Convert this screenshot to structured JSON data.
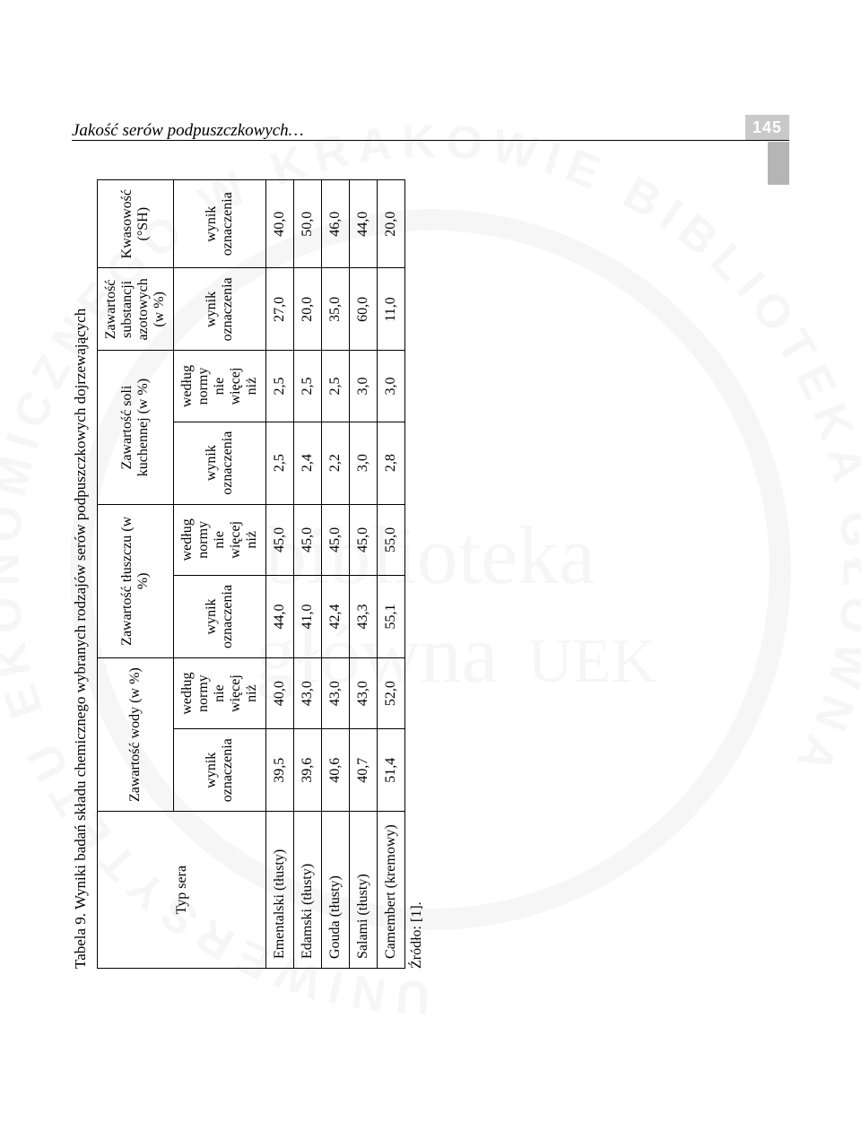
{
  "header": {
    "title": "Jakość serów podpuszczkowych…",
    "page_number": "145"
  },
  "watermark": {
    "outer_text": "UNIWERSYTETU EKONOMICZNEGO W KRAKOWIE BIBLIOTEKA GŁÓWNA",
    "center_top": "biblioteka",
    "center_bottom_main": "główna",
    "center_bottom_suffix": "UEK"
  },
  "table": {
    "caption": "Tabela 9. Wyniki badań składu chemicznego  wybranych rodzajów serów podpuszczkowych dojrzewających",
    "columns": {
      "type": "Typ sera",
      "water": "Zawartość wody (w %)",
      "fat": "Zawartość tłuszczu (w %)",
      "salt": "Zawartość soli kuchennej (w %)",
      "nitrogen": "Zawartość substancji azotowych (w %)",
      "acidity": "Kwasowość (°SH)",
      "sub_result": "wynik oznaczenia",
      "sub_norm": "według normy nie więcej niż"
    },
    "rows": [
      {
        "type": "Ementalski (tłusty)",
        "water_r": "39,5",
        "water_n": "40,0",
        "fat_r": "44,0",
        "fat_n": "45,0",
        "salt_r": "2,5",
        "salt_n": "2,5",
        "nitro": "27,0",
        "acid": "40,0"
      },
      {
        "type": "Edamski (tłusty)",
        "water_r": "39,6",
        "water_n": "43,0",
        "fat_r": "41,0",
        "fat_n": "45,0",
        "salt_r": "2,4",
        "salt_n": "2,5",
        "nitro": "20,0",
        "acid": "50,0"
      },
      {
        "type": "Gouda (tłusty)",
        "water_r": "40,6",
        "water_n": "43,0",
        "fat_r": "42,4",
        "fat_n": "45,0",
        "salt_r": "2,2",
        "salt_n": "2,5",
        "nitro": "35,0",
        "acid": "46,0"
      },
      {
        "type": "Salami (tłusty)",
        "water_r": "40,7",
        "water_n": "43,0",
        "fat_r": "43,3",
        "fat_n": "45,0",
        "salt_r": "3,0",
        "salt_n": "3,0",
        "nitro": "60,0",
        "acid": "44,0"
      },
      {
        "type": "Camembert (kremowy)",
        "water_r": "51,4",
        "water_n": "52,0",
        "fat_r": "55,1",
        "fat_n": "55,0",
        "salt_r": "2,8",
        "salt_n": "3,0",
        "nitro": "11,0",
        "acid": "20,0"
      }
    ],
    "source": "Źródło: [1]."
  },
  "colors": {
    "page_bg": "#ffffff",
    "text": "#000000",
    "pagebox_bg": "#c9c9c9",
    "sidetab_bg": "#b5b5b5",
    "watermark_gray": "#b8b8b8"
  }
}
